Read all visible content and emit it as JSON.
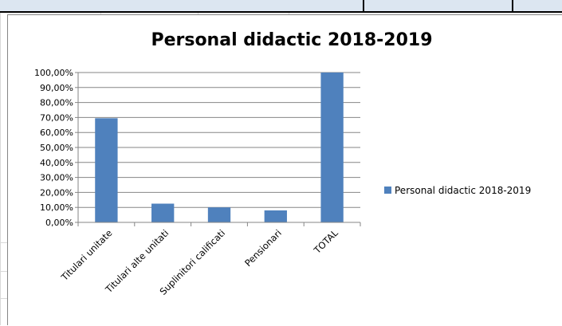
{
  "chart_data": {
    "type": "bar",
    "title": "Personal didactic 2018-2019",
    "categories": [
      "Titulari unitate",
      "Titulari alte unitati",
      "Suplinitori calificati",
      "Pensionari",
      "TOTAL"
    ],
    "series": [
      {
        "name": "Personal didactic 2018-2019",
        "values": [
          69.5,
          12.5,
          10.0,
          8.0,
          100.0
        ],
        "color": "#4f81bd"
      }
    ],
    "y_ticks": [
      "0,00%",
      "10,00%",
      "20,00%",
      "30,00%",
      "40,00%",
      "50,00%",
      "60,00%",
      "70,00%",
      "80,00%",
      "90,00%",
      "100,00%"
    ],
    "ylim": [
      0,
      100
    ],
    "ytick_step": 10,
    "grid": true,
    "legend_position": "right"
  }
}
